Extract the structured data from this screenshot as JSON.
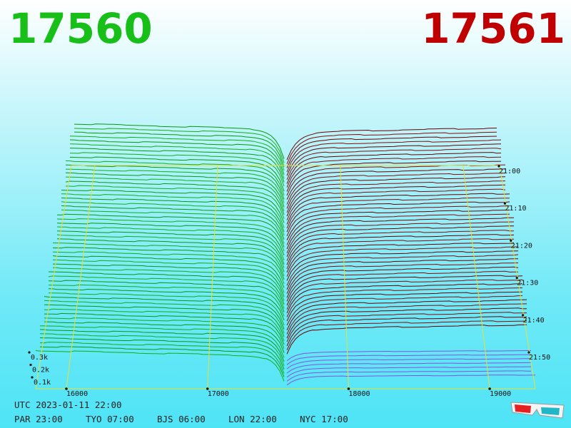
{
  "header": {
    "bid": "17560",
    "ask": "17561"
  },
  "price_axis": {
    "ticks": [
      16000,
      17000,
      18000,
      19000
    ]
  },
  "volume_axis": {
    "ticks": [
      "0.3k",
      "0.2k",
      "0.1k"
    ]
  },
  "time_axis": {
    "ticks": [
      "21:00",
      "21:10",
      "21:20",
      "21:30",
      "21:40",
      "21:50"
    ]
  },
  "footer": {
    "utc": "UTC 2023-01-11 22:00",
    "zones": [
      "PAR 23:00",
      "TYO 07:00",
      "BJS 06:00",
      "LON 22:00",
      "NYC 17:00"
    ]
  }
}
